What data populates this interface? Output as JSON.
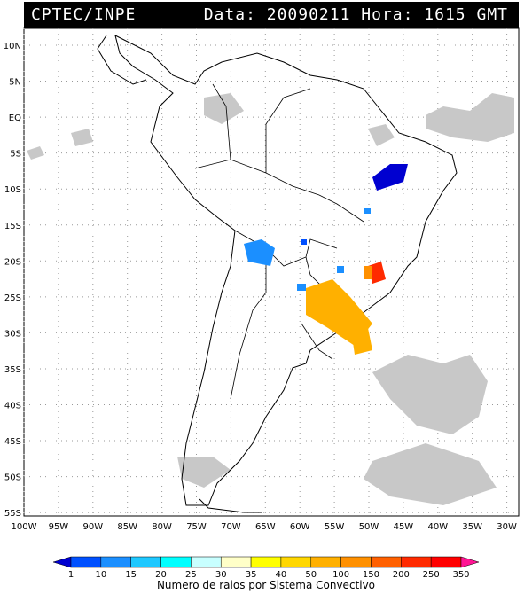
{
  "header": {
    "source": "CPTEC/INPE",
    "datetime": "Data: 20090211 Hora: 1615 GMT"
  },
  "map": {
    "lat_labels": [
      "10N",
      "5N",
      "EQ",
      "5S",
      "10S",
      "15S",
      "20S",
      "25S",
      "30S",
      "35S",
      "40S",
      "45S",
      "50S",
      "55S"
    ],
    "lon_labels": [
      "100W",
      "95W",
      "90W",
      "85W",
      "80W",
      "75W",
      "70W",
      "65W",
      "60W",
      "55W",
      "50W",
      "45W",
      "40W",
      "35W",
      "30W"
    ]
  },
  "legend": {
    "title": "Numero de raios por Sistema Convectivo",
    "ticks": [
      "1",
      "10",
      "15",
      "20",
      "25",
      "30",
      "35",
      "40",
      "50",
      "100",
      "150",
      "200",
      "250",
      "350"
    ],
    "colors": [
      "#0000d0",
      "#0050ff",
      "#1b8fff",
      "#1ec8ff",
      "#00ffff",
      "#c8ffff",
      "#ffffc8",
      "#ffff00",
      "#ffd700",
      "#ffb000",
      "#ff9000",
      "#ff6000",
      "#ff2a00",
      "#ff0000",
      "#ff1493"
    ]
  }
}
